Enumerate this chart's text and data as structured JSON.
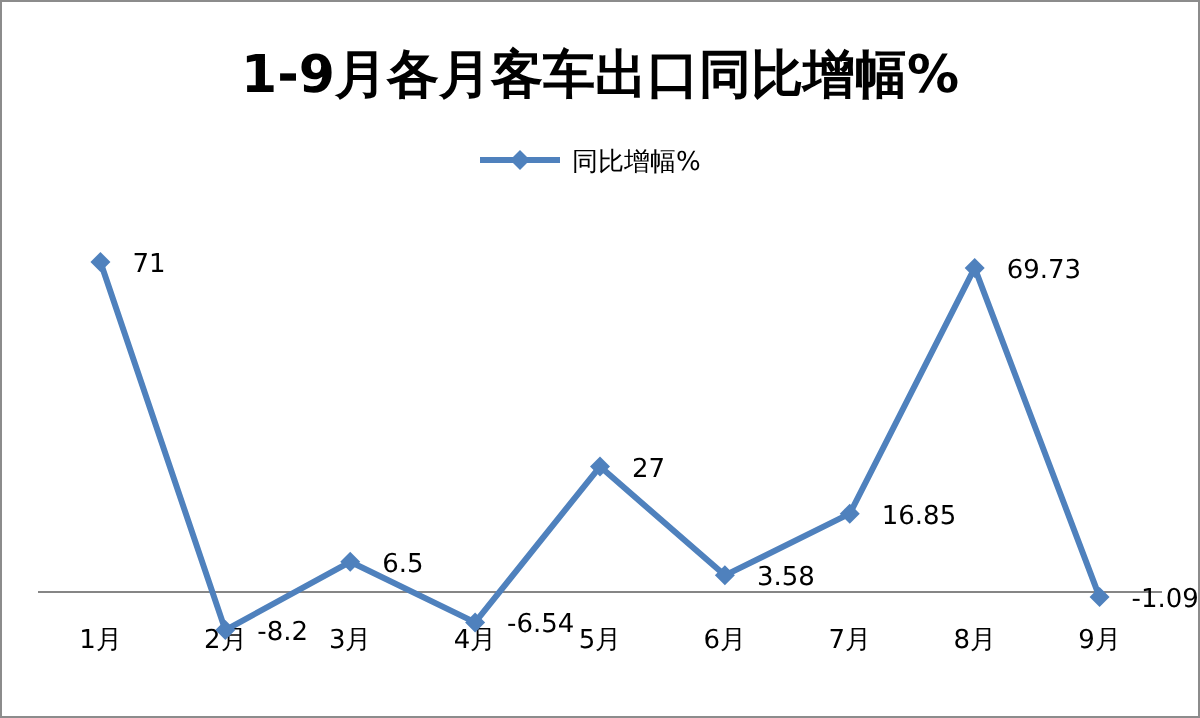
{
  "chart_data": {
    "type": "line",
    "title": "1-9月各月客车出口同比增幅%",
    "categories": [
      "1月",
      "2月",
      "3月",
      "4月",
      "5月",
      "6月",
      "7月",
      "8月",
      "9月"
    ],
    "series": [
      {
        "name": "同比增幅%",
        "color": "#4f81bd",
        "values": [
          71,
          -8.2,
          6.5,
          -6.54,
          27,
          3.58,
          16.85,
          69.73,
          -1.09
        ]
      }
    ],
    "data_labels": true,
    "legend": "top",
    "marker": "diamond",
    "line_style": "solid"
  }
}
